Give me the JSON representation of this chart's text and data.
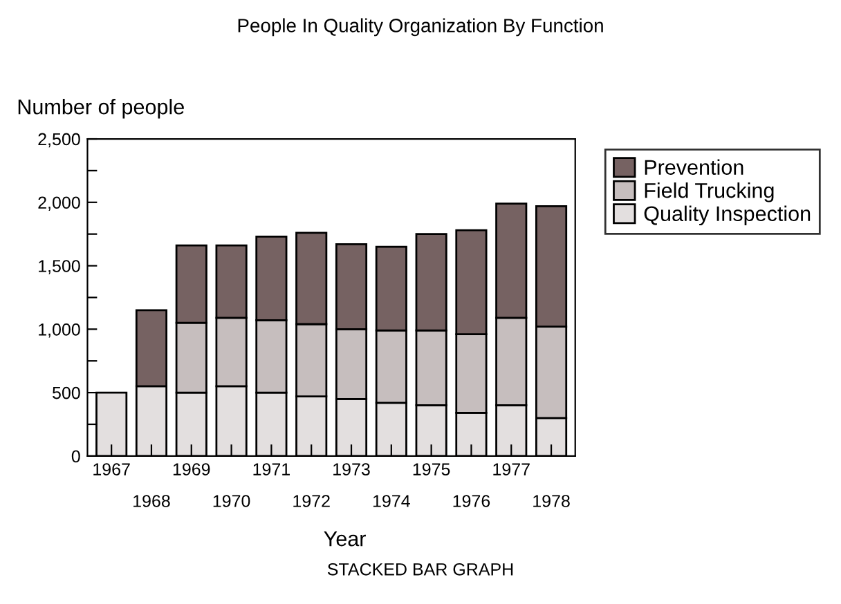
{
  "chart_data": {
    "type": "bar",
    "title": "People In Quality Organization By Function",
    "ylabel": "Number of people",
    "xlabel": "Year",
    "annotations": [
      "STACKED BAR GRAPH"
    ],
    "categories": [
      "1967",
      "1968",
      "1969",
      "1970",
      "1971",
      "1972",
      "1973",
      "1974",
      "1975",
      "1976",
      "1977",
      "1978"
    ],
    "stacked": true,
    "series": [
      {
        "name": "Quality Inspection",
        "color": "#e3dfdf",
        "values": [
          500,
          550,
          500,
          550,
          500,
          470,
          450,
          420,
          400,
          340,
          400,
          300
        ]
      },
      {
        "name": "Field Trucking",
        "color": "#c6bebe",
        "values": [
          null,
          null,
          550,
          540,
          570,
          570,
          550,
          570,
          590,
          620,
          690,
          720
        ]
      },
      {
        "name": "Prevention",
        "color": "#766262",
        "values": [
          null,
          600,
          610,
          570,
          660,
          720,
          670,
          660,
          760,
          820,
          900,
          950
        ]
      }
    ],
    "ylim": [
      0,
      2500
    ],
    "yticks": [
      0,
      {
        "value": 250,
        "label": null
      },
      {
        "value": 500,
        "label": "500"
      },
      {
        "value": 750,
        "label": null
      },
      {
        "value": 1000,
        "label": "1,000"
      },
      {
        "value": 1250,
        "label": null
      },
      {
        "value": 1500,
        "label": "1,500"
      },
      {
        "value": 1750,
        "label": null
      },
      {
        "value": 2000,
        "label": "2,000"
      },
      {
        "value": 2250,
        "label": null
      },
      {
        "value": 2500,
        "label": "2,500"
      }
    ],
    "legend": "top right",
    "grid": false
  }
}
